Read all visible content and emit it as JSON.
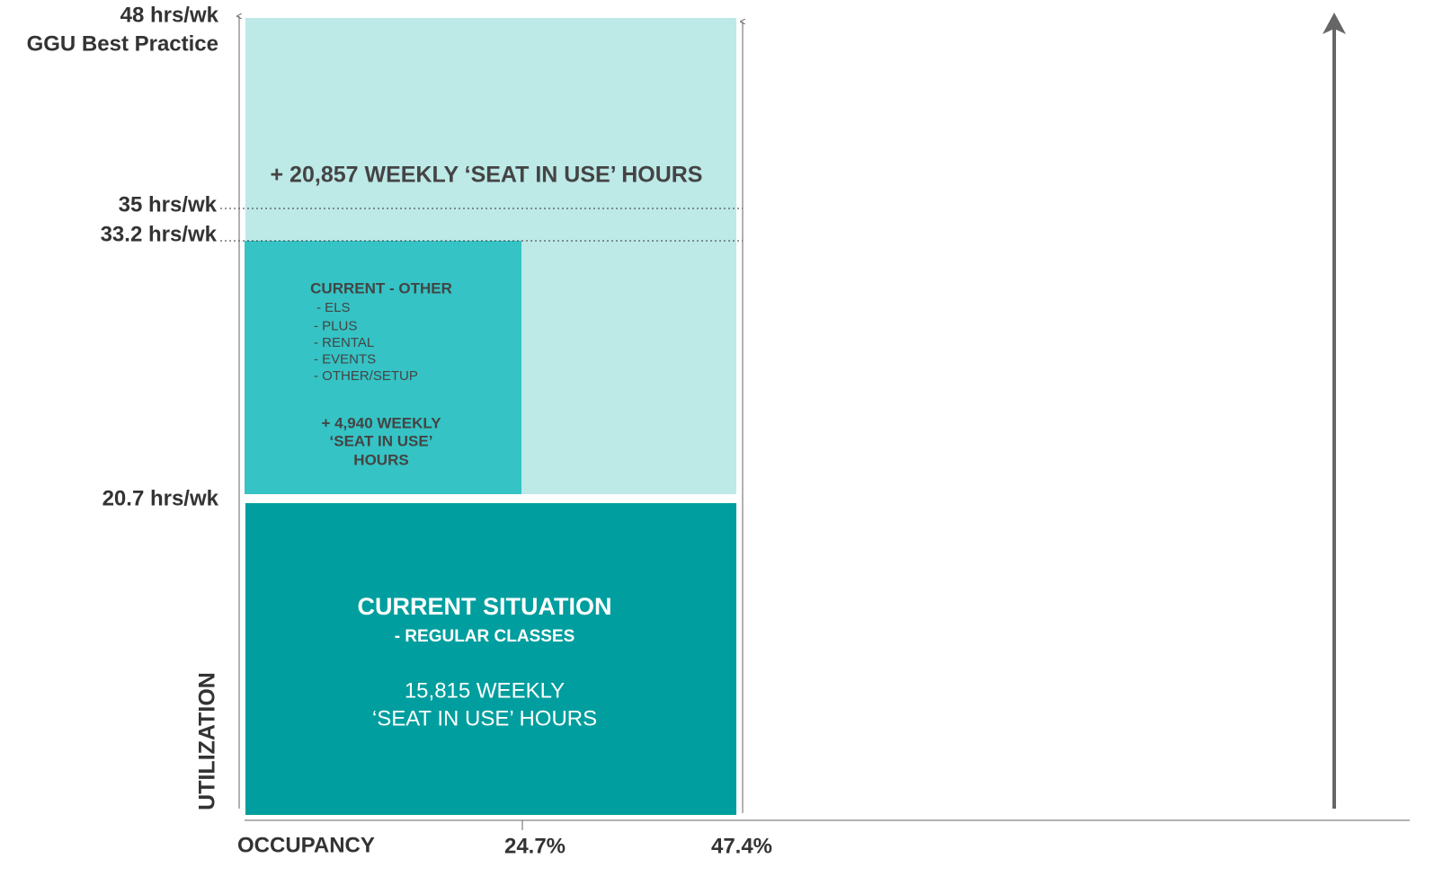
{
  "y_axis": {
    "label": "UTILIZATION",
    "levels": [
      "48 hrs/wk",
      "GGU Best Practice",
      "35 hrs/wk",
      "33.2 hrs/wk",
      "20.7 hrs/wk"
    ]
  },
  "x_axis": {
    "label": "OCCUPANCY",
    "ticks": [
      "24.7%",
      "47.4%"
    ]
  },
  "potential": {
    "text": "+ 20,857 WEEKLY ‘SEAT IN USE’ HOURS"
  },
  "current_other": {
    "title": "CURRENT - OTHER",
    "items": [
      "- ELS",
      "- PLUS",
      "- RENTAL",
      "- EVENTS",
      "- OTHER/SETUP"
    ],
    "hours": [
      "+ 4,940 WEEKLY",
      "‘SEAT IN USE’",
      "HOURS"
    ]
  },
  "current_situation": {
    "title": "CURRENT SITUATION",
    "subtitle": "- REGULAR CLASSES",
    "hours": [
      "15,815 WEEKLY",
      "‘SEAT IN USE’ HOURS"
    ]
  }
}
